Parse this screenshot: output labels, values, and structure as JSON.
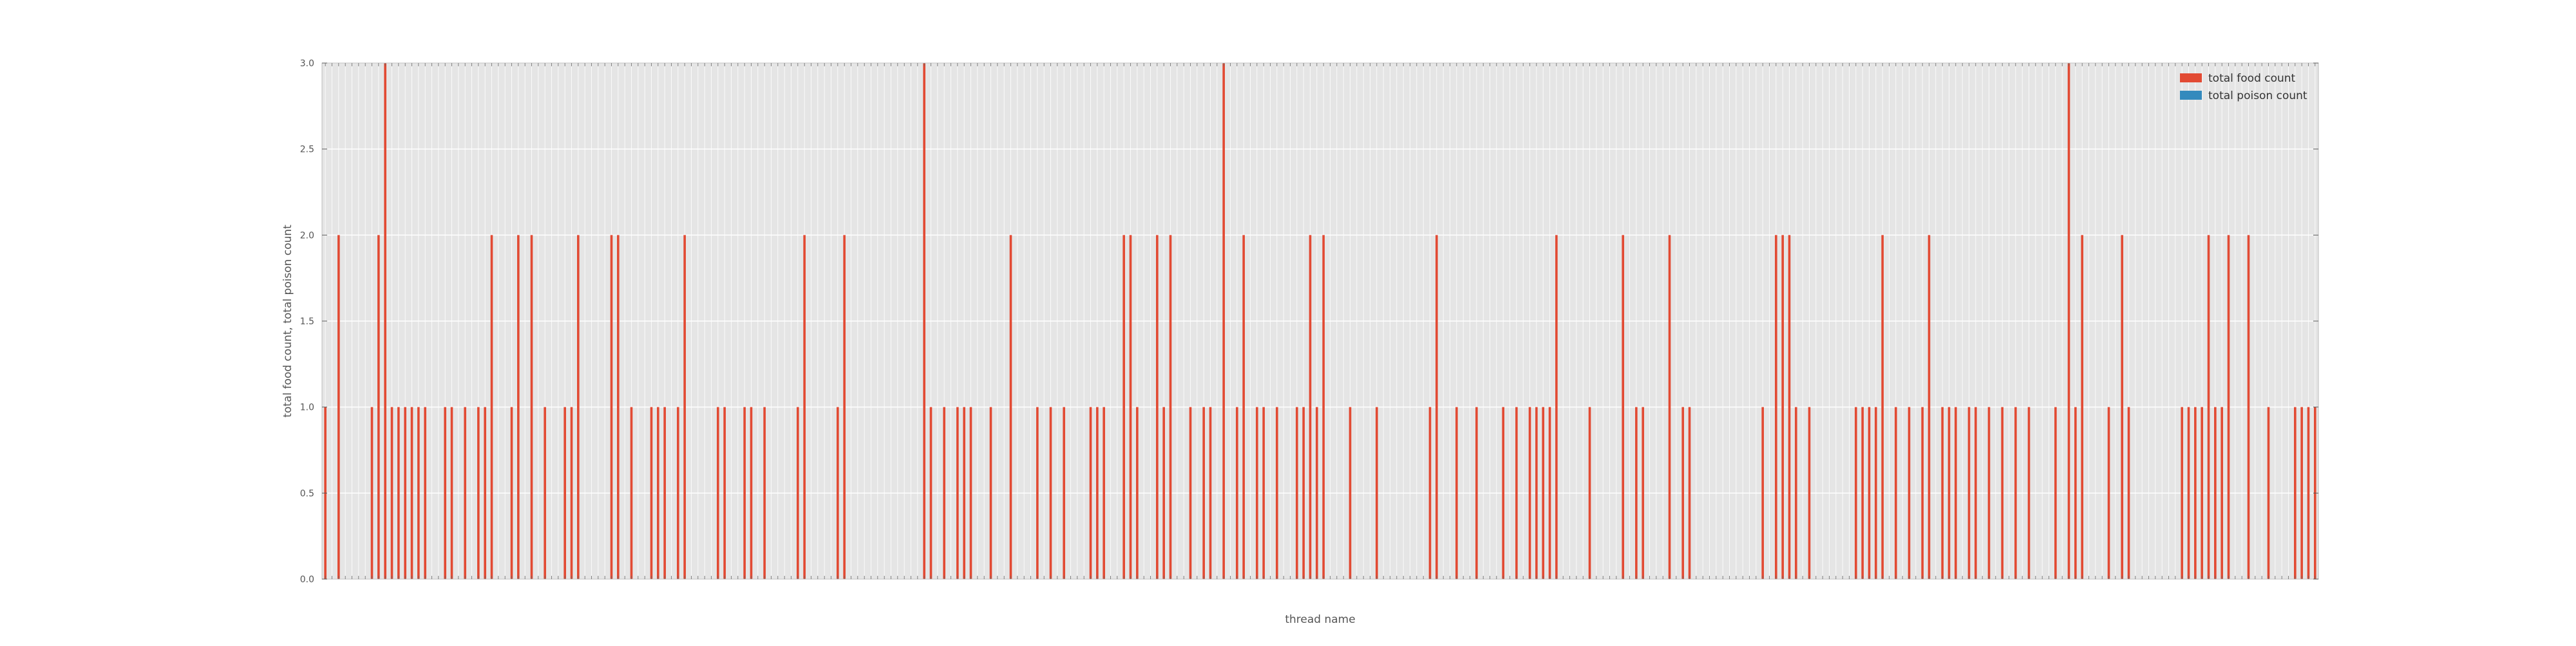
{
  "chart_data": {
    "type": "bar",
    "xlabel": "thread name",
    "ylabel": "total food count, total poison count",
    "ylim": [
      0,
      3.0
    ],
    "yticks": [
      "0.0",
      "0.5",
      "1.0",
      "1.5",
      "2.0",
      "2.5",
      "3.0"
    ],
    "grid": true,
    "legend_position": "top-right",
    "colors": {
      "plot_bg": "#e5e5e5",
      "grid": "#ffffff",
      "food": "#e24a33",
      "poison": "#348abd",
      "frame": "#bcbcbc"
    },
    "category_count": 300,
    "series": [
      {
        "name": "total food count",
        "color": "#e24a33",
        "points": [
          [
            0,
            1
          ],
          [
            2,
            2
          ],
          [
            7,
            1
          ],
          [
            8,
            2
          ],
          [
            9,
            3
          ],
          [
            10,
            1
          ],
          [
            11,
            1
          ],
          [
            12,
            1
          ],
          [
            13,
            1
          ],
          [
            14,
            1
          ],
          [
            15,
            1
          ],
          [
            18,
            1
          ],
          [
            19,
            1
          ],
          [
            21,
            1
          ],
          [
            23,
            1
          ],
          [
            24,
            1
          ],
          [
            25,
            2
          ],
          [
            28,
            1
          ],
          [
            29,
            2
          ],
          [
            31,
            2
          ],
          [
            33,
            1
          ],
          [
            36,
            1
          ],
          [
            37,
            1
          ],
          [
            38,
            2
          ],
          [
            43,
            2
          ],
          [
            44,
            2
          ],
          [
            46,
            1
          ],
          [
            49,
            1
          ],
          [
            50,
            1
          ],
          [
            51,
            1
          ],
          [
            53,
            1
          ],
          [
            54,
            2
          ],
          [
            59,
            1
          ],
          [
            60,
            1
          ],
          [
            63,
            1
          ],
          [
            64,
            1
          ],
          [
            66,
            1
          ],
          [
            71,
            1
          ],
          [
            72,
            2
          ],
          [
            77,
            1
          ],
          [
            78,
            2
          ],
          [
            90,
            3
          ],
          [
            91,
            1
          ],
          [
            93,
            1
          ],
          [
            95,
            1
          ],
          [
            96,
            1
          ],
          [
            97,
            1
          ],
          [
            100,
            1
          ],
          [
            103,
            2
          ],
          [
            107,
            1
          ],
          [
            109,
            1
          ],
          [
            111,
            1
          ],
          [
            115,
            1
          ],
          [
            116,
            1
          ],
          [
            117,
            1
          ],
          [
            120,
            2
          ],
          [
            121,
            2
          ],
          [
            122,
            1
          ],
          [
            125,
            2
          ],
          [
            126,
            1
          ],
          [
            127,
            2
          ],
          [
            130,
            1
          ],
          [
            132,
            1
          ],
          [
            133,
            1
          ],
          [
            135,
            3
          ],
          [
            137,
            1
          ],
          [
            138,
            2
          ],
          [
            140,
            1
          ],
          [
            141,
            1
          ],
          [
            143,
            1
          ],
          [
            146,
            1
          ],
          [
            147,
            1
          ],
          [
            148,
            2
          ],
          [
            149,
            1
          ],
          [
            150,
            2
          ],
          [
            154,
            1
          ],
          [
            158,
            1
          ],
          [
            166,
            1
          ],
          [
            167,
            2
          ],
          [
            170,
            1
          ],
          [
            173,
            1
          ],
          [
            177,
            1
          ],
          [
            179,
            1
          ],
          [
            181,
            1
          ],
          [
            182,
            1
          ],
          [
            183,
            1
          ],
          [
            184,
            1
          ],
          [
            185,
            2
          ],
          [
            190,
            1
          ],
          [
            195,
            2
          ],
          [
            197,
            1
          ],
          [
            198,
            1
          ],
          [
            202,
            2
          ],
          [
            204,
            1
          ],
          [
            205,
            1
          ],
          [
            216,
            1
          ],
          [
            218,
            2
          ],
          [
            219,
            2
          ],
          [
            220,
            2
          ],
          [
            221,
            1
          ],
          [
            223,
            1
          ],
          [
            230,
            1
          ],
          [
            231,
            1
          ],
          [
            232,
            1
          ],
          [
            233,
            1
          ],
          [
            234,
            2
          ],
          [
            236,
            1
          ],
          [
            238,
            1
          ],
          [
            240,
            1
          ],
          [
            241,
            2
          ],
          [
            243,
            1
          ],
          [
            244,
            1
          ],
          [
            245,
            1
          ],
          [
            247,
            1
          ],
          [
            248,
            1
          ],
          [
            250,
            1
          ],
          [
            252,
            1
          ],
          [
            254,
            1
          ],
          [
            256,
            1
          ],
          [
            260,
            1
          ],
          [
            262,
            3
          ],
          [
            263,
            1
          ],
          [
            264,
            2
          ],
          [
            268,
            1
          ],
          [
            270,
            2
          ],
          [
            271,
            1
          ],
          [
            279,
            1
          ],
          [
            280,
            1
          ],
          [
            281,
            1
          ],
          [
            282,
            1
          ],
          [
            283,
            2
          ],
          [
            284,
            1
          ],
          [
            285,
            1
          ],
          [
            286,
            2
          ],
          [
            289,
            2
          ],
          [
            292,
            1
          ],
          [
            296,
            1
          ],
          [
            297,
            1
          ],
          [
            298,
            1
          ],
          [
            299,
            1
          ]
        ]
      },
      {
        "name": "total poison count",
        "color": "#348abd",
        "points": []
      }
    ]
  }
}
